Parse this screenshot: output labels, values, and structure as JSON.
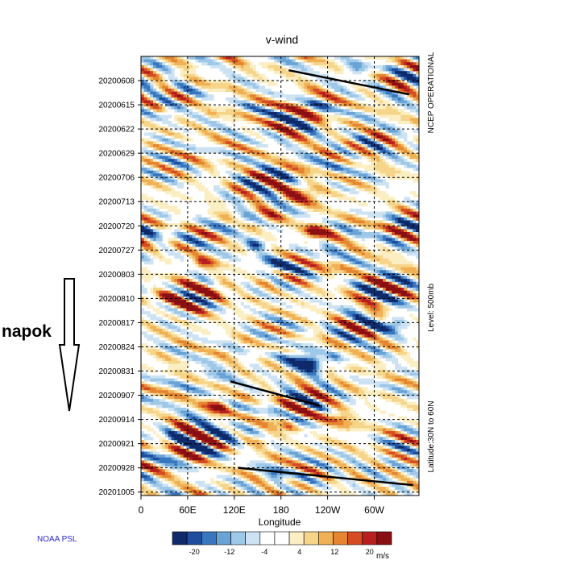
{
  "chart_data": {
    "type": "heatmap",
    "title": "v-wind",
    "xlabel": "Longitude",
    "x_ticks": [
      "0",
      "60E",
      "120E",
      "180",
      "120W",
      "60W"
    ],
    "y_ticks": [
      "20200608",
      "20200615",
      "20200622",
      "20200629",
      "20200706",
      "20200713",
      "20200720",
      "20200727",
      "20200803",
      "20200810",
      "20200817",
      "20200824",
      "20200831",
      "20200907",
      "20200914",
      "20200921",
      "20200928",
      "20201005"
    ],
    "y_range": [
      "20200601",
      "20201006"
    ],
    "x_range_deg_east": [
      0,
      357.5
    ],
    "grid": true,
    "side_labels": {
      "source": "NCEP OPERATIONAL",
      "level": "Level: 500mb",
      "latitude": "Latitude:30N to 60N"
    },
    "colorbar": {
      "ticks": [
        "-20",
        "-12",
        "-4",
        "4",
        "12",
        "20"
      ],
      "unit": "m/s",
      "colors": [
        "#0f2a6b",
        "#1f4e9e",
        "#3877c0",
        "#6aa3d6",
        "#9ec8e8",
        "#cde3f3",
        "#ffffff",
        "#ffffff",
        "#fbeec3",
        "#f6d58a",
        "#f0b055",
        "#e58530",
        "#d54b22",
        "#b81f1f",
        "#8a0f12"
      ]
    },
    "trend_lines": [
      {
        "from": {
          "lon": 190,
          "date": "20200605"
        },
        "to": {
          "lon": 345,
          "date": "20200612"
        }
      },
      {
        "from": {
          "lon": 115,
          "date": "20200903"
        },
        "to": {
          "lon": 230,
          "date": "20200910"
        }
      },
      {
        "from": {
          "lon": 125,
          "date": "20200928"
        },
        "to": {
          "lon": 350,
          "date": "20201003"
        }
      }
    ]
  },
  "credit": "NOAA PSL",
  "annotation": {
    "label": "napok",
    "arrow_icon": "down-arrow-icon"
  }
}
